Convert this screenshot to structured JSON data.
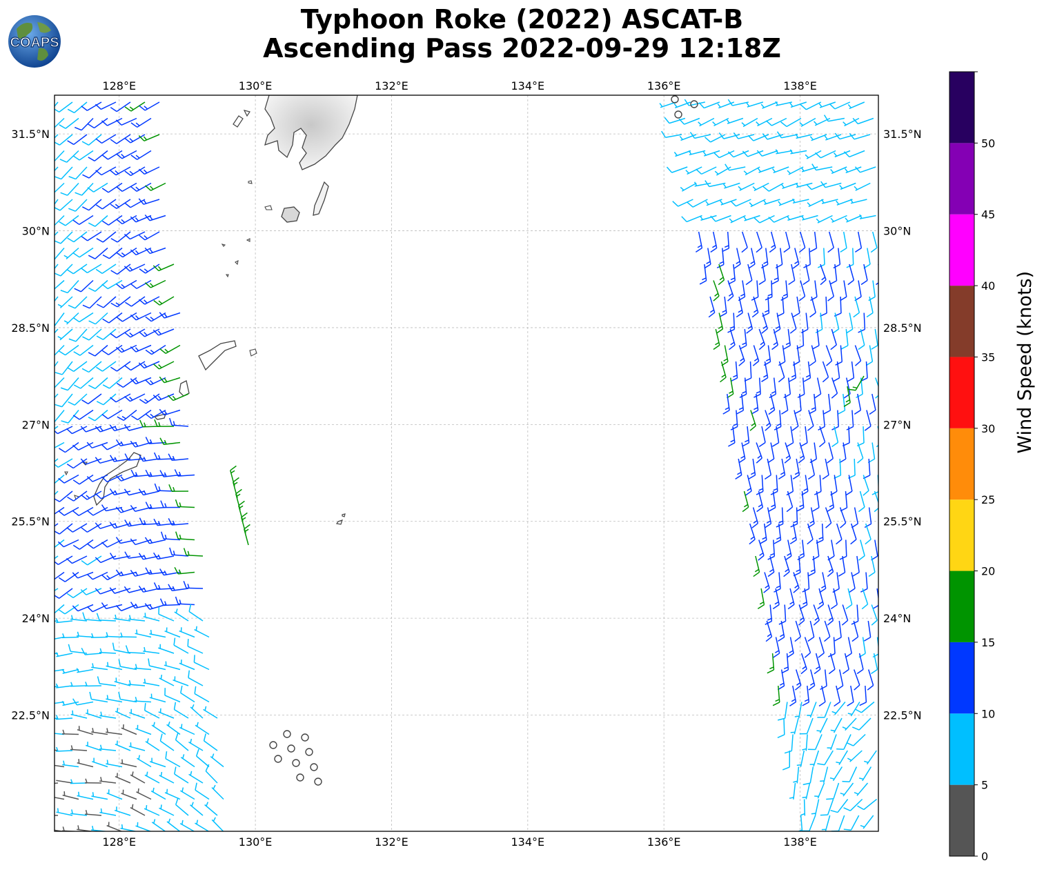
{
  "title_line1": "Typhoon Roke (2022) ASCAT-B",
  "title_line2": "Ascending Pass 2022-09-29 12:18Z",
  "logo_text": "COAPS",
  "map": {
    "lon_ticks": [
      "128°E",
      "130°E",
      "132°E",
      "134°E",
      "136°E",
      "138°E"
    ],
    "lat_ticks": [
      "31.5°N",
      "30°N",
      "28.5°N",
      "27°N",
      "25.5°N",
      "24°N",
      "22.5°N"
    ],
    "lon_range": [
      127.05,
      139.15
    ],
    "lat_range": [
      20.7,
      32.1
    ],
    "gridlines": true,
    "layer": "wind barbs"
  },
  "colorbar": {
    "label": "Wind Speed (knots)",
    "ticks": [
      "0",
      "5",
      "10",
      "15",
      "20",
      "25",
      "30",
      "35",
      "40",
      "45",
      "50"
    ],
    "bins": [
      {
        "from": 0,
        "to": 5,
        "color": "#555555"
      },
      {
        "from": 5,
        "to": 10,
        "color": "#00bfff"
      },
      {
        "from": 10,
        "to": 15,
        "color": "#0038ff"
      },
      {
        "from": 15,
        "to": 20,
        "color": "#009400"
      },
      {
        "from": 20,
        "to": 25,
        "color": "#ffd614"
      },
      {
        "from": 25,
        "to": 30,
        "color": "#ff8c0a"
      },
      {
        "from": 30,
        "to": 35,
        "color": "#ff1010"
      },
      {
        "from": 35,
        "to": 40,
        "color": "#843c2a"
      },
      {
        "from": 40,
        "to": 45,
        "color": "#ff00ff"
      },
      {
        "from": 45,
        "to": 50,
        "color": "#8400b4"
      },
      {
        "from": 50,
        "to": 55,
        "color": "#280060"
      }
    ]
  }
}
